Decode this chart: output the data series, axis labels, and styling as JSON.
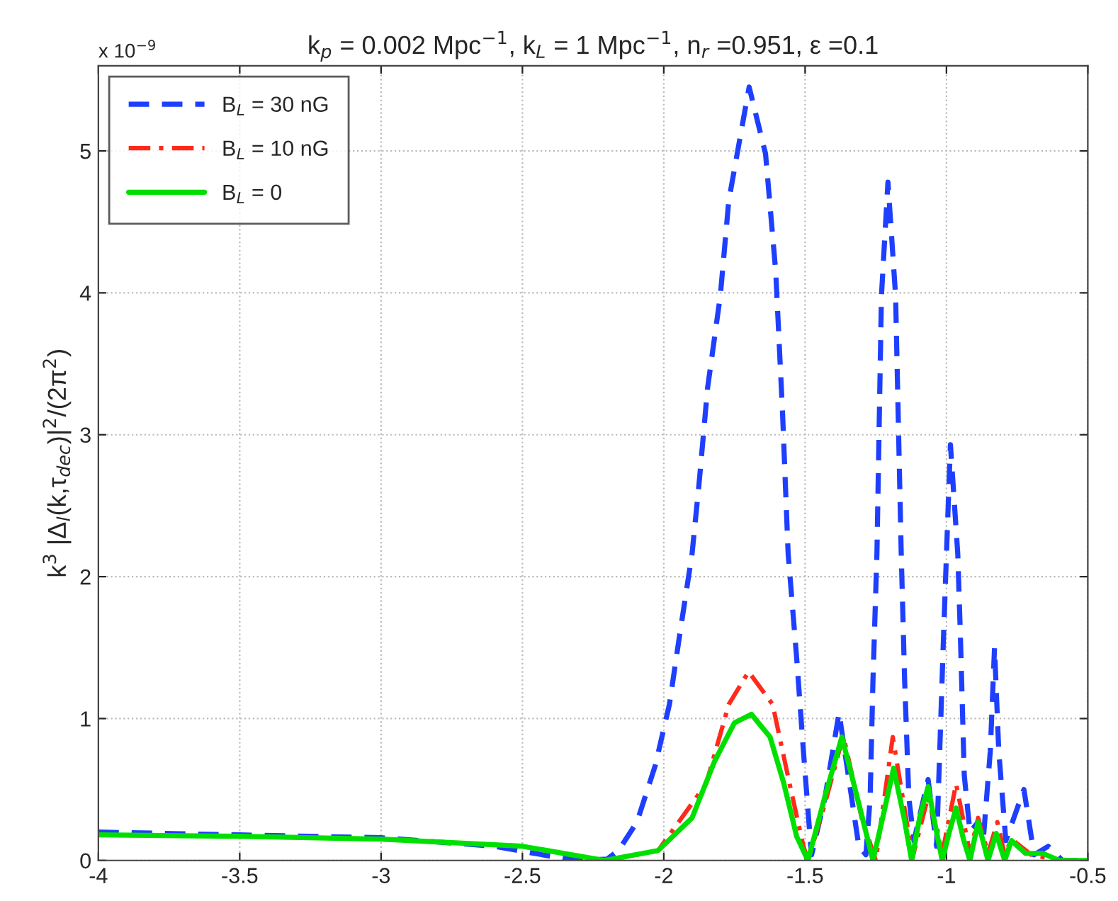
{
  "chart_data": {
    "type": "line",
    "title": "k$_{p}$ = 0.002 Mpc$^{−1}$, k$_{L}$ = 1 Mpc$^{−1}$, n$_{r}$ =0.951, ε =0.1",
    "ylabel": "k$^{3}$ |Δ$_{l}$(k,τ$_{dec}$)|$^{2}$/(2π$^{2}$)",
    "annotations": [
      "x 10$^{−9}$"
    ],
    "xlim": [
      -4,
      -0.5
    ],
    "xticks": [
      -4,
      -3.5,
      -3,
      -2.5,
      -2,
      -1.5,
      -1,
      -0.5
    ],
    "ylim": [
      0,
      5.6
    ],
    "yticks": [
      0,
      1,
      2,
      3,
      4,
      5
    ],
    "grid": true,
    "legend": "top left",
    "series": [
      {
        "name": "B$_{L}$ = 30 nG",
        "color": "#1f3fff",
        "line_style": "dashed",
        "x": [
          -4,
          -3.5,
          -3,
          -2.6,
          -2.4,
          -2.3,
          -2.2,
          -2.16,
          -2.095,
          -2.03,
          -1.98,
          -1.943,
          -1.9,
          -1.875,
          -1.845,
          -1.8,
          -1.77,
          -1.698,
          -1.64,
          -1.604,
          -1.58,
          -1.56,
          -1.53,
          -1.506,
          -1.48,
          -1.477,
          -1.43,
          -1.38,
          -1.31,
          -1.285,
          -1.27,
          -1.26,
          -1.246,
          -1.23,
          -1.207,
          -1.18,
          -1.16,
          -1.148,
          -1.133,
          -1.115,
          -1.065,
          -1.035,
          -1.01,
          -1.0,
          -0.986,
          -0.96,
          -0.951,
          -0.937,
          -0.917,
          -0.888,
          -0.87,
          -0.845,
          -0.83,
          -0.815,
          -0.79,
          -0.726,
          -0.69,
          -0.64,
          -0.59,
          -0.5
        ],
        "values": [
          0.2,
          0.18,
          0.16,
          0.1,
          0.03,
          0,
          0.01,
          0.07,
          0.27,
          0.67,
          1.1,
          1.6,
          2.16,
          2.66,
          3.33,
          3.98,
          4.65,
          5.45,
          4.98,
          4.15,
          3.16,
          2.16,
          1.43,
          0.77,
          0.1,
          0.04,
          0.44,
          1.04,
          0.1,
          0.04,
          0.44,
          1.27,
          2.16,
          3.98,
          4.78,
          3.98,
          2.16,
          1.27,
          0.44,
          0.14,
          0.57,
          0.1,
          1.6,
          2.16,
          2.93,
          2.16,
          1.6,
          0.6,
          0.2,
          0.27,
          0.14,
          0.77,
          1.5,
          0.77,
          0.14,
          0.5,
          0.04,
          0.1,
          0,
          0
        ]
      },
      {
        "name": "B$_{L}$ = 10 nG",
        "color": "#ff2a1a",
        "line_style": "dashdot",
        "x": [
          -2.2,
          -2.02,
          -1.85,
          -1.77,
          -1.7,
          -1.615,
          -1.555,
          -1.506,
          -1.49,
          -1.43,
          -1.365,
          -1.3,
          -1.25,
          -1.19,
          -1.12,
          -1.065,
          -1.015,
          -0.966,
          -0.917,
          -0.888,
          -0.853,
          -0.82,
          -0.794,
          -0.77,
          -0.7,
          -0.6,
          -0.5
        ],
        "values": [
          0,
          0.07,
          0.54,
          1.1,
          1.33,
          1.1,
          0.54,
          0.1,
          0,
          0.4,
          0.88,
          0.3,
          0,
          0.87,
          0.02,
          0.45,
          0.05,
          0.54,
          0.05,
          0.3,
          0.05,
          0.27,
          0.04,
          0.15,
          0.04,
          0,
          0
        ]
      },
      {
        "name": "B$_{L}$ = 0",
        "color": "#00e000",
        "line_style": "solid",
        "x": [
          -4,
          -3.5,
          -3,
          -2.5,
          -2.21,
          -2.02,
          -1.9,
          -1.82,
          -1.75,
          -1.69,
          -1.624,
          -1.575,
          -1.53,
          -1.49,
          -1.43,
          -1.37,
          -1.31,
          -1.26,
          -1.22,
          -1.187,
          -1.15,
          -1.123,
          -1.095,
          -1.065,
          -1.04,
          -1.015,
          -0.99,
          -0.966,
          -0.94,
          -0.917,
          -0.888,
          -0.853,
          -0.824,
          -0.794,
          -0.77,
          -0.72,
          -0.66,
          -0.6,
          -0.5
        ],
        "values": [
          0.18,
          0.17,
          0.15,
          0.1,
          0,
          0.07,
          0.3,
          0.7,
          0.97,
          1.03,
          0.87,
          0.54,
          0.17,
          0,
          0.45,
          0.87,
          0.4,
          0,
          0.35,
          0.65,
          0.3,
          0,
          0.3,
          0.52,
          0.25,
          0,
          0.2,
          0.37,
          0.15,
          0,
          0.27,
          0,
          0.19,
          0,
          0.14,
          0.05,
          0.05,
          0,
          0
        ]
      }
    ]
  }
}
